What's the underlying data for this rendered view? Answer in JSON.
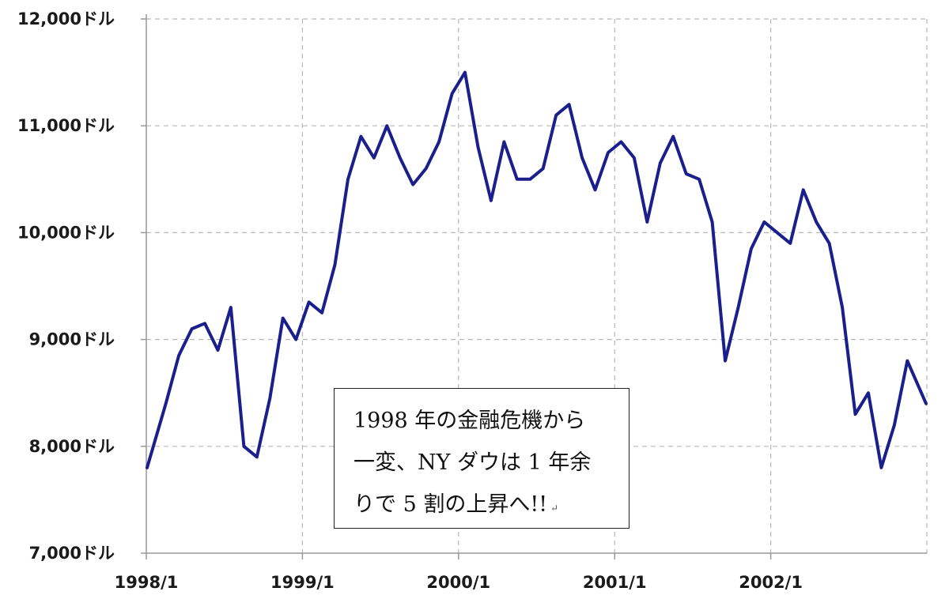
{
  "chart_data": {
    "type": "line",
    "title": "",
    "xlabel": "",
    "ylabel": "",
    "ylim": [
      7000,
      12000
    ],
    "x_range": [
      "1998-01",
      "2002-12"
    ],
    "y_ticks": [
      "12,000ドル",
      "11,000ドル",
      "10,000ドル",
      "9,000ドル",
      "8,000ドル",
      "7,000ドル"
    ],
    "y_tick_values": [
      12000,
      11000,
      10000,
      9000,
      8000,
      7000
    ],
    "x_ticks": [
      "1998/1",
      "1999/1",
      "2000/1",
      "2001/1",
      "2002/1"
    ],
    "x_tick_values": [
      "1998-01",
      "1999-01",
      "2000-01",
      "2001-01",
      "2002-01"
    ],
    "grid": true,
    "line_color": "#1a1f8c",
    "series": [
      {
        "x": [
          "1998-01",
          "1998-02",
          "1998-03",
          "1998-04",
          "1998-05",
          "1998-06",
          "1998-07",
          "1998-08",
          "1998-09",
          "1998-10",
          "1998-11",
          "1998-12",
          "1999-01",
          "1999-02",
          "1999-03",
          "1999-04",
          "1999-05",
          "1999-06",
          "1999-07",
          "1999-08",
          "1999-09",
          "1999-10",
          "1999-11",
          "1999-12",
          "2000-01",
          "2000-02",
          "2000-03",
          "2000-04",
          "2000-05",
          "2000-06",
          "2000-07",
          "2000-08",
          "2000-09",
          "2000-10",
          "2000-11",
          "2000-12",
          "2001-01",
          "2001-02",
          "2001-03",
          "2001-04",
          "2001-05",
          "2001-06",
          "2001-07",
          "2001-08",
          "2001-09",
          "2001-10",
          "2001-11",
          "2001-12",
          "2002-01",
          "2002-02",
          "2002-03",
          "2002-04",
          "2002-05",
          "2002-06",
          "2002-07",
          "2002-08",
          "2002-09",
          "2002-10",
          "2002-11",
          "2002-12"
        ],
        "y": [
          7800,
          8400,
          8850,
          9100,
          9150,
          8900,
          9300,
          8000,
          7900,
          8450,
          9200,
          9000,
          9350,
          9250,
          9700,
          10500,
          10900,
          10700,
          11000,
          10700,
          10450,
          10600,
          10850,
          11300,
          11500,
          10800,
          10300,
          10850,
          10500,
          10500,
          10600,
          11100,
          11200,
          10700,
          10400,
          10750,
          10850,
          10700,
          10100,
          10650,
          10900,
          10550,
          10500,
          10100,
          8800,
          9300,
          9850,
          10100,
          10000,
          9900,
          10400,
          10100,
          9900,
          9300,
          8300,
          8500,
          7800,
          8200,
          8800,
          8400
        ]
      }
    ]
  },
  "annotation": {
    "lines": [
      "1998 年の金融危機から",
      "一変、NY ダウは 1 年余",
      "りで 5 割の上昇へ!!"
    ],
    "mark": "↵"
  }
}
